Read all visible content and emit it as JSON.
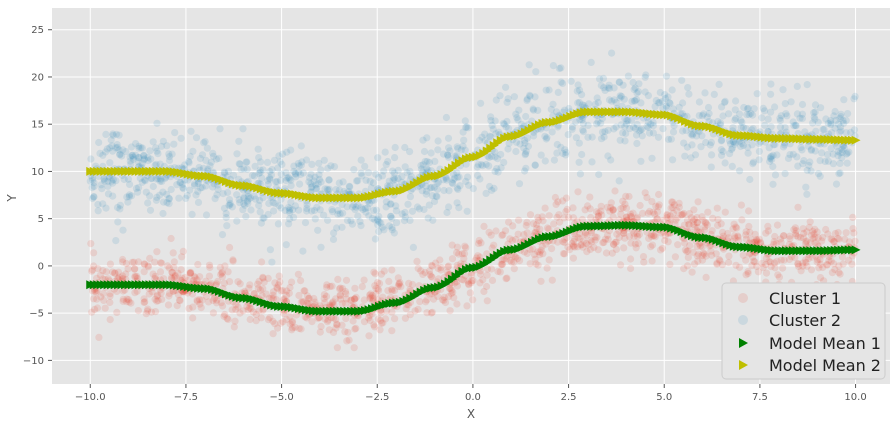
{
  "chart_data": {
    "type": "scatter",
    "title": "",
    "xlabel": "X",
    "ylabel": "Y",
    "xlim": [
      -11,
      10.9
    ],
    "ylim": [
      -12.5,
      27.3
    ],
    "grid": true,
    "legend_position": "bottom-right",
    "x_ticks": [
      -10.0,
      -7.5,
      -5.0,
      -2.5,
      0.0,
      2.5,
      5.0,
      7.5,
      10.0
    ],
    "x_tick_labels": [
      "−10.0",
      "−7.5",
      "−5.0",
      "−2.5",
      "0.0",
      "2.5",
      "5.0",
      "7.5",
      "10.0"
    ],
    "y_ticks": [
      -10,
      -5,
      0,
      5,
      10,
      15,
      20,
      25
    ],
    "y_tick_labels": [
      "−10",
      "−5",
      "0",
      "5",
      "10",
      "15",
      "20",
      "25"
    ],
    "background_color": "#e5e5e5",
    "grid_color": "#ffffff",
    "series": [
      {
        "name": "Cluster 1",
        "kind": "scatter",
        "color": "#e24a33",
        "opacity": 0.15,
        "marker": "circle",
        "x_range": [
          -10,
          10
        ],
        "mean_curve": [
          [
            -10,
            -2
          ],
          [
            -8,
            -2
          ],
          [
            -7,
            -2.4
          ],
          [
            -6,
            -3.4
          ],
          [
            -5,
            -4.3
          ],
          [
            -4,
            -4.8
          ],
          [
            -3,
            -4.8
          ],
          [
            -2,
            -3.9
          ],
          [
            -1,
            -2.3
          ],
          [
            0,
            -0.2
          ],
          [
            1,
            1.7
          ],
          [
            2,
            3.1
          ],
          [
            3,
            4.2
          ],
          [
            4,
            4.3
          ],
          [
            5,
            4.1
          ],
          [
            6,
            3
          ],
          [
            7,
            2
          ],
          [
            8,
            1.6
          ],
          [
            9,
            1.6
          ],
          [
            10,
            1.7
          ]
        ],
        "spread_sd": 1.6
      },
      {
        "name": "Cluster 2",
        "kind": "scatter",
        "color": "#348abd",
        "opacity": 0.15,
        "marker": "circle",
        "x_range": [
          -10,
          10
        ],
        "mean_curve": [
          [
            -10,
            10
          ],
          [
            -8,
            10
          ],
          [
            -7,
            9.5
          ],
          [
            -6,
            8.5
          ],
          [
            -5,
            7.7
          ],
          [
            -4,
            7.2
          ],
          [
            -3,
            7.2
          ],
          [
            -2,
            7.9
          ],
          [
            -1,
            9.5
          ],
          [
            0,
            11.5
          ],
          [
            1,
            13.7
          ],
          [
            2,
            15.2
          ],
          [
            3,
            16.3
          ],
          [
            4,
            16.3
          ],
          [
            5,
            16
          ],
          [
            6,
            14.8
          ],
          [
            7,
            13.8
          ],
          [
            8,
            13.5
          ],
          [
            9,
            13.4
          ],
          [
            10,
            13.3
          ]
        ],
        "spread_sd": 2.2
      },
      {
        "name": "Model Mean 1",
        "kind": "marker-line",
        "color": "#008000",
        "marker": "triangle-right",
        "points": [
          [
            -10,
            -2
          ],
          [
            -8,
            -2
          ],
          [
            -7,
            -2.4
          ],
          [
            -6,
            -3.4
          ],
          [
            -5,
            -4.3
          ],
          [
            -4,
            -4.8
          ],
          [
            -3,
            -4.8
          ],
          [
            -2,
            -3.9
          ],
          [
            -1,
            -2.3
          ],
          [
            0,
            -0.2
          ],
          [
            1,
            1.7
          ],
          [
            2,
            3.1
          ],
          [
            3,
            4.2
          ],
          [
            4,
            4.3
          ],
          [
            5,
            4.1
          ],
          [
            6,
            3
          ],
          [
            7,
            2
          ],
          [
            8,
            1.6
          ],
          [
            9,
            1.6
          ],
          [
            10,
            1.7
          ]
        ]
      },
      {
        "name": "Model Mean 2",
        "kind": "marker-line",
        "color": "#bfbf00",
        "marker": "triangle-right",
        "points": [
          [
            -10,
            10
          ],
          [
            -8,
            10
          ],
          [
            -7,
            9.5
          ],
          [
            -6,
            8.5
          ],
          [
            -5,
            7.7
          ],
          [
            -4,
            7.2
          ],
          [
            -3,
            7.2
          ],
          [
            -2,
            7.9
          ],
          [
            -1,
            9.5
          ],
          [
            0,
            11.5
          ],
          [
            1,
            13.7
          ],
          [
            2,
            15.2
          ],
          [
            3,
            16.3
          ],
          [
            4,
            16.3
          ],
          [
            5,
            16
          ],
          [
            6,
            14.8
          ],
          [
            7,
            13.8
          ],
          [
            8,
            13.5
          ],
          [
            9,
            13.4
          ],
          [
            10,
            13.3
          ]
        ]
      }
    ]
  }
}
